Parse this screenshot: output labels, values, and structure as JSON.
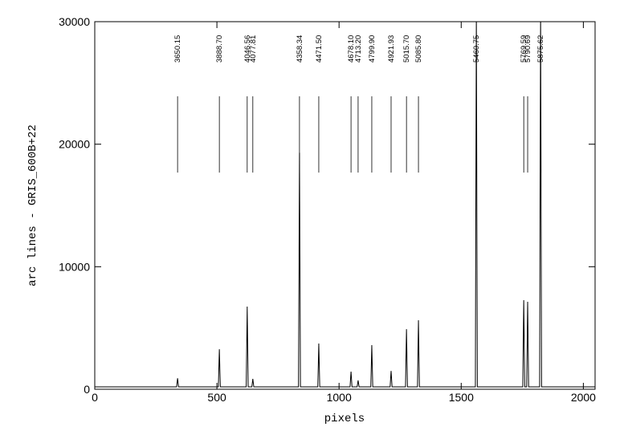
{
  "chart_data": {
    "type": "line",
    "x_label": "pixels",
    "y_label": "arc lines  -  GRIS_600B+22",
    "xlim": [
      0,
      2048
    ],
    "ylim": [
      0,
      30000
    ],
    "xticks": [
      0,
      500,
      1000,
      1500,
      2000
    ],
    "yticks": [
      0,
      10000,
      20000,
      30000
    ],
    "x": [
      0,
      335,
      339,
      343,
      506,
      510,
      514,
      620,
      624,
      628,
      643,
      647,
      651,
      834,
      838,
      842,
      913,
      917,
      921,
      1045,
      1049,
      1053,
      1074,
      1078,
      1082,
      1130,
      1134,
      1138,
      1209,
      1213,
      1217,
      1272,
      1276,
      1280,
      1321,
      1325,
      1329,
      1558,
      1562,
      1566,
      1752,
      1756,
      1760,
      1768,
      1772,
      1776,
      1821,
      1825,
      1829,
      2048
    ],
    "series": [
      {
        "name": "arc lines",
        "color": "#000000",
        "values": [
          200,
          200,
          900,
          200,
          200,
          3270,
          200,
          200,
          6750,
          200,
          200,
          850,
          200,
          200,
          19300,
          200,
          200,
          3730,
          200,
          200,
          1440,
          200,
          200,
          720,
          200,
          200,
          3600,
          200,
          200,
          1500,
          200,
          200,
          4900,
          200,
          200,
          5630,
          200,
          200,
          31000,
          200,
          200,
          7270,
          200,
          200,
          7140,
          200,
          200,
          31000,
          200,
          200
        ]
      }
    ],
    "lines": [
      {
        "label": "3650.15",
        "x": 339
      },
      {
        "label": "3888.70",
        "x": 510
      },
      {
        "label": "4046.56",
        "x": 624
      },
      {
        "label": "4077.81",
        "x": 647
      },
      {
        "label": "4358.34",
        "x": 838
      },
      {
        "label": "4471.50",
        "x": 917
      },
      {
        "label": "4678.10",
        "x": 1049
      },
      {
        "label": "4713.20",
        "x": 1078
      },
      {
        "label": "4799.90",
        "x": 1134
      },
      {
        "label": "4921.93",
        "x": 1213
      },
      {
        "label": "5015.70",
        "x": 1276
      },
      {
        "label": "5085.80",
        "x": 1325
      },
      {
        "label": "5460.75",
        "x": 1562
      },
      {
        "label": "5769.59",
        "x": 1756
      },
      {
        "label": "5790.69",
        "x": 1772
      },
      {
        "label": "5875.62",
        "x": 1825
      }
    ]
  }
}
